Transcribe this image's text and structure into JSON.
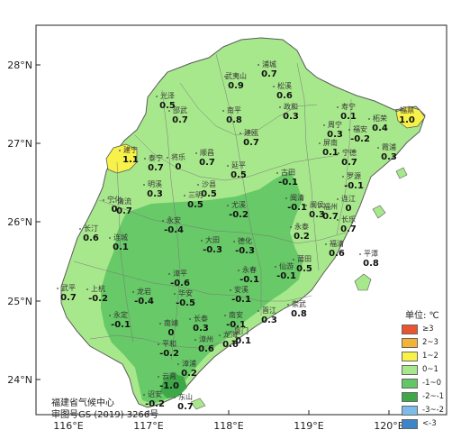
{
  "axes": {
    "lat_ticks": [
      "28°N",
      "27°N",
      "26°N",
      "25°N",
      "24°N"
    ],
    "lon_ticks": [
      "116°E",
      "117°E",
      "118°E",
      "119°E",
      "120°E"
    ]
  },
  "stations": [
    {
      "name": "武夷山",
      "value": "0.9"
    },
    {
      "name": "浦城",
      "value": "0.7"
    },
    {
      "name": "松溪",
      "value": "0.6"
    },
    {
      "name": "政和",
      "value": "0.3"
    },
    {
      "name": "光泽",
      "value": "0.5"
    },
    {
      "name": "邵武",
      "value": "0.7"
    },
    {
      "name": "南平",
      "value": "0.8"
    },
    {
      "name": "建瓯",
      "value": "0.7"
    },
    {
      "name": "寿宁",
      "value": "0.1"
    },
    {
      "name": "周宁",
      "value": "0.3"
    },
    {
      "name": "柘荣",
      "value": "0.4"
    },
    {
      "name": "福鼎",
      "value": "1.0"
    },
    {
      "name": "福安",
      "value": "-0.2"
    },
    {
      "name": "霞浦",
      "value": "0.3"
    },
    {
      "name": "屏南",
      "value": "0.1"
    },
    {
      "name": "宁德",
      "value": "0.7"
    },
    {
      "name": "建宁",
      "value": "1.1"
    },
    {
      "name": "泰宁",
      "value": "0.7"
    },
    {
      "name": "将乐",
      "value": "0"
    },
    {
      "name": "顺昌",
      "value": "0.7"
    },
    {
      "name": "延平",
      "value": "0.5"
    },
    {
      "name": "古田",
      "value": "-0.1"
    },
    {
      "name": "罗源",
      "value": "-0.1"
    },
    {
      "name": "明溪",
      "value": "0.3"
    },
    {
      "name": "沙县",
      "value": "0.5"
    },
    {
      "name": "三明",
      "value": "0.5"
    },
    {
      "name": "尤溪",
      "value": "-0.2"
    },
    {
      "name": "闽清",
      "value": "-0.1"
    },
    {
      "name": "闽侯",
      "value": "0.3"
    },
    {
      "name": "福州",
      "value": "0.7"
    },
    {
      "name": "连江",
      "value": "0"
    },
    {
      "name": "宁化",
      "value": "0"
    },
    {
      "name": "清流",
      "value": "0.7"
    },
    {
      "name": "长乐",
      "value": "0.7"
    },
    {
      "name": "永泰",
      "value": "0.2"
    },
    {
      "name": "长汀",
      "value": "0.6"
    },
    {
      "name": "连城",
      "value": "0.1"
    },
    {
      "name": "永安",
      "value": "-0.4"
    },
    {
      "name": "大田",
      "value": "-0.3"
    },
    {
      "name": "德化",
      "value": "-0.3"
    },
    {
      "name": "福清",
      "value": "0.6"
    },
    {
      "name": "莆田",
      "value": "0.5"
    },
    {
      "name": "平潭",
      "value": "0.8"
    },
    {
      "name": "仙游",
      "value": "-0.1"
    },
    {
      "name": "永春",
      "value": "-0.1"
    },
    {
      "name": "武平",
      "value": "0.7"
    },
    {
      "name": "上杭",
      "value": "-0.2"
    },
    {
      "name": "漳平",
      "value": "-0.6"
    },
    {
      "name": "龙岩",
      "value": "-0.4"
    },
    {
      "name": "华安",
      "value": "-0.5"
    },
    {
      "name": "安溪",
      "value": "-0.1"
    },
    {
      "name": "南安",
      "value": "-0.1"
    },
    {
      "name": "晋江",
      "value": "0.3"
    },
    {
      "name": "崇武",
      "value": "0.8"
    },
    {
      "name": "永定",
      "value": "-0.1"
    },
    {
      "name": "南靖",
      "value": "0"
    },
    {
      "name": "长泰",
      "value": "0.3"
    },
    {
      "name": "厦门",
      "value": "-0.1"
    },
    {
      "name": "平和",
      "value": "-0.2"
    },
    {
      "name": "漳州",
      "value": "0.6"
    },
    {
      "name": "龙海",
      "value": "0.6"
    },
    {
      "name": "漳浦",
      "value": "0.2"
    },
    {
      "name": "云霄",
      "value": "-1.0"
    },
    {
      "name": "诏安",
      "value": "-0.2"
    },
    {
      "name": "东山",
      "value": "0.7"
    }
  ],
  "legend": {
    "title": "单位: ℃",
    "items": [
      {
        "label": "≥3",
        "color": "#e8552f"
      },
      {
        "label": "2~3",
        "color": "#f5b335"
      },
      {
        "label": "1~2",
        "color": "#f7f24a"
      },
      {
        "label": "0~1",
        "color": "#a8e88c"
      },
      {
        "label": "-1~0",
        "color": "#63c765"
      },
      {
        "label": "-2~-1",
        "color": "#3ea748"
      },
      {
        "label": "-3~-2",
        "color": "#7bbde8"
      },
      {
        "label": "<-3",
        "color": "#3b85c8"
      }
    ]
  },
  "credit": {
    "line1": "福建省气候中心",
    "line2": "审图号GS (2019) 3266号"
  }
}
